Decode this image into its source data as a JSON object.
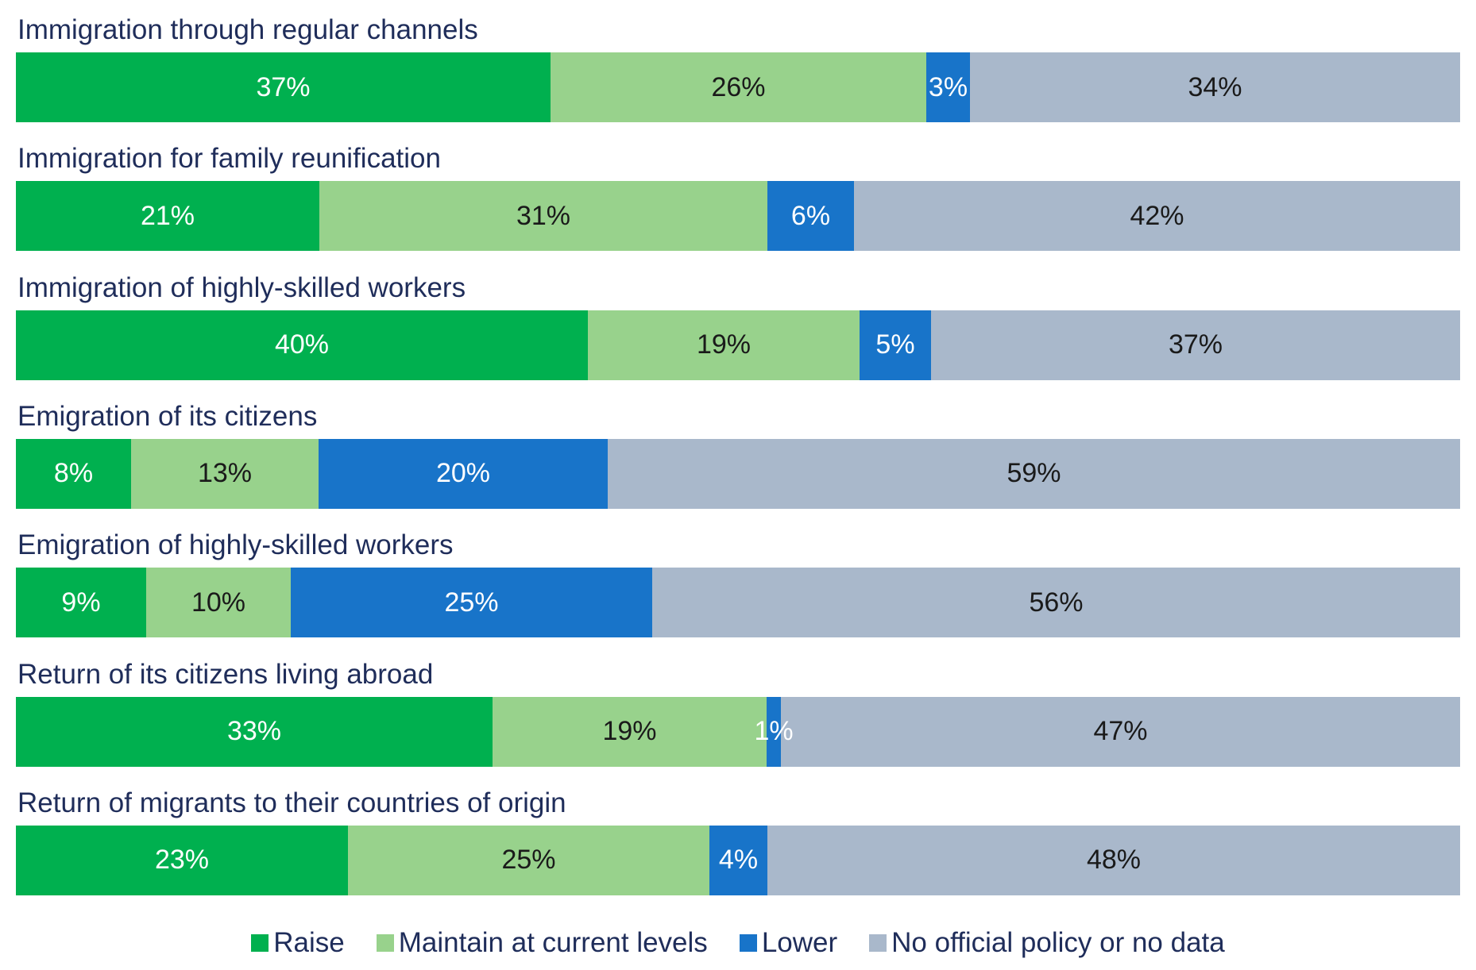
{
  "chart_data": {
    "type": "bar",
    "orientation": "horizontal",
    "stacked": true,
    "categories": [
      "Immigration through regular channels",
      "Immigration for family reunification",
      "Immigration of highly-skilled workers",
      "Emigration of its citizens",
      "Emigration of highly-skilled workers",
      "Return of its citizens living abroad",
      "Return of migrants to their countries of origin"
    ],
    "series": [
      {
        "name": "Raise",
        "color": "#00b04f",
        "text_color": "#ffffff",
        "values": [
          37,
          21,
          40,
          8,
          9,
          33,
          23
        ],
        "labels": [
          "37%",
          "21%",
          "40%",
          "8%",
          "9%",
          "33%",
          "23%"
        ]
      },
      {
        "name": "Maintain at current levels",
        "color": "#98d28c",
        "text_color": "#1a1a1a",
        "values": [
          26,
          31,
          19,
          13,
          10,
          19,
          25
        ],
        "labels": [
          "26%",
          "31%",
          "19%",
          "13%",
          "10%",
          "19%",
          "25%"
        ]
      },
      {
        "name": "Lower",
        "color": "#1874c9",
        "text_color": "#ffffff",
        "values": [
          3,
          6,
          5,
          20,
          25,
          1,
          4
        ],
        "labels": [
          "3%",
          "6%",
          "5%",
          "20%",
          "25%",
          "1%",
          "4%"
        ]
      },
      {
        "name": "No official policy or no data",
        "color": "#a9b8cb",
        "text_color": "#1a1a1a",
        "values": [
          34,
          42,
          37,
          59,
          56,
          47,
          48
        ],
        "labels": [
          "34%",
          "42%",
          "37%",
          "59%",
          "56%",
          "47%",
          "48%"
        ]
      }
    ],
    "legend_position": "bottom",
    "xlim": [
      0,
      100
    ]
  }
}
